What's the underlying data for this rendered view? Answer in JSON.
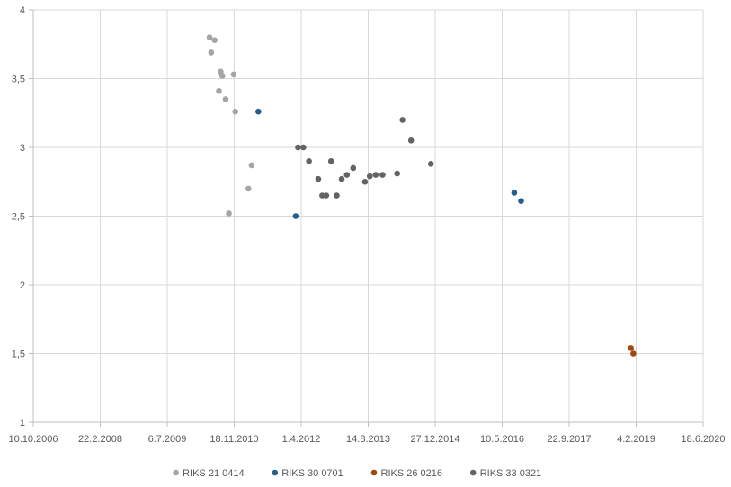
{
  "chart_data": {
    "type": "scatter",
    "title": "",
    "xlabel": "",
    "ylabel": "",
    "x_axis": {
      "type": "date",
      "tick_labels": [
        "10.10.2006",
        "22.2.2008",
        "6.7.2009",
        "18.11.2010",
        "1.4.2012",
        "14.8.2013",
        "27.12.2014",
        "10.5.2016",
        "22.9.2017",
        "4.2.2019",
        "18.6.2020"
      ],
      "range": [
        "2006-10-10",
        "2020-06-18"
      ]
    },
    "y_axis": {
      "tick_labels": [
        "1",
        "1,5",
        "2",
        "2,5",
        "3",
        "3,5",
        "4"
      ],
      "ylim": [
        1,
        4
      ]
    },
    "grid": true,
    "legend_position": "bottom",
    "series": [
      {
        "name": "RIKS 21 0414",
        "color": "#a5a5a5",
        "points": [
          {
            "x": "2010-05-18",
            "y": 3.8
          },
          {
            "x": "2010-06-25",
            "y": 3.78
          },
          {
            "x": "2010-05-30",
            "y": 3.69
          },
          {
            "x": "2010-08-09",
            "y": 3.55
          },
          {
            "x": "2010-08-21",
            "y": 3.52
          },
          {
            "x": "2010-11-14",
            "y": 3.53
          },
          {
            "x": "2010-07-27",
            "y": 3.41
          },
          {
            "x": "2010-09-15",
            "y": 3.35
          },
          {
            "x": "2010-11-26",
            "y": 3.26
          },
          {
            "x": "2011-03-28",
            "y": 2.87
          },
          {
            "x": "2011-03-04",
            "y": 2.7
          },
          {
            "x": "2010-10-09",
            "y": 2.52
          }
        ]
      },
      {
        "name": "RIKS 30 0701",
        "color": "#255e91",
        "points": [
          {
            "x": "2011-05-17",
            "y": 3.26
          },
          {
            "x": "2012-02-20",
            "y": 2.5
          },
          {
            "x": "2016-08-08",
            "y": 2.67
          },
          {
            "x": "2016-09-28",
            "y": 2.61
          }
        ]
      },
      {
        "name": "RIKS 26 0216",
        "color": "#9e480e",
        "points": [
          {
            "x": "2018-12-27",
            "y": 1.54
          },
          {
            "x": "2019-01-14",
            "y": 1.5
          }
        ]
      },
      {
        "name": "RIKS 33 0321",
        "color": "#636363",
        "points": [
          {
            "x": "2012-03-08",
            "y": 3.0
          },
          {
            "x": "2012-04-17",
            "y": 3.0
          },
          {
            "x": "2012-05-29",
            "y": 2.9
          },
          {
            "x": "2012-08-06",
            "y": 2.77
          },
          {
            "x": "2012-09-05",
            "y": 2.65
          },
          {
            "x": "2012-10-05",
            "y": 2.65
          },
          {
            "x": "2012-11-10",
            "y": 2.9
          },
          {
            "x": "2012-12-22",
            "y": 2.65
          },
          {
            "x": "2013-01-28",
            "y": 2.77
          },
          {
            "x": "2013-03-08",
            "y": 2.8
          },
          {
            "x": "2013-04-24",
            "y": 2.85
          },
          {
            "x": "2013-07-21",
            "y": 2.75
          },
          {
            "x": "2013-08-26",
            "y": 2.79
          },
          {
            "x": "2013-10-09",
            "y": 2.8
          },
          {
            "x": "2013-11-29",
            "y": 2.8
          },
          {
            "x": "2014-03-18",
            "y": 2.81
          },
          {
            "x": "2014-04-27",
            "y": 3.2
          },
          {
            "x": "2014-06-30",
            "y": 3.05
          },
          {
            "x": "2014-11-25",
            "y": 2.88
          }
        ]
      }
    ]
  }
}
